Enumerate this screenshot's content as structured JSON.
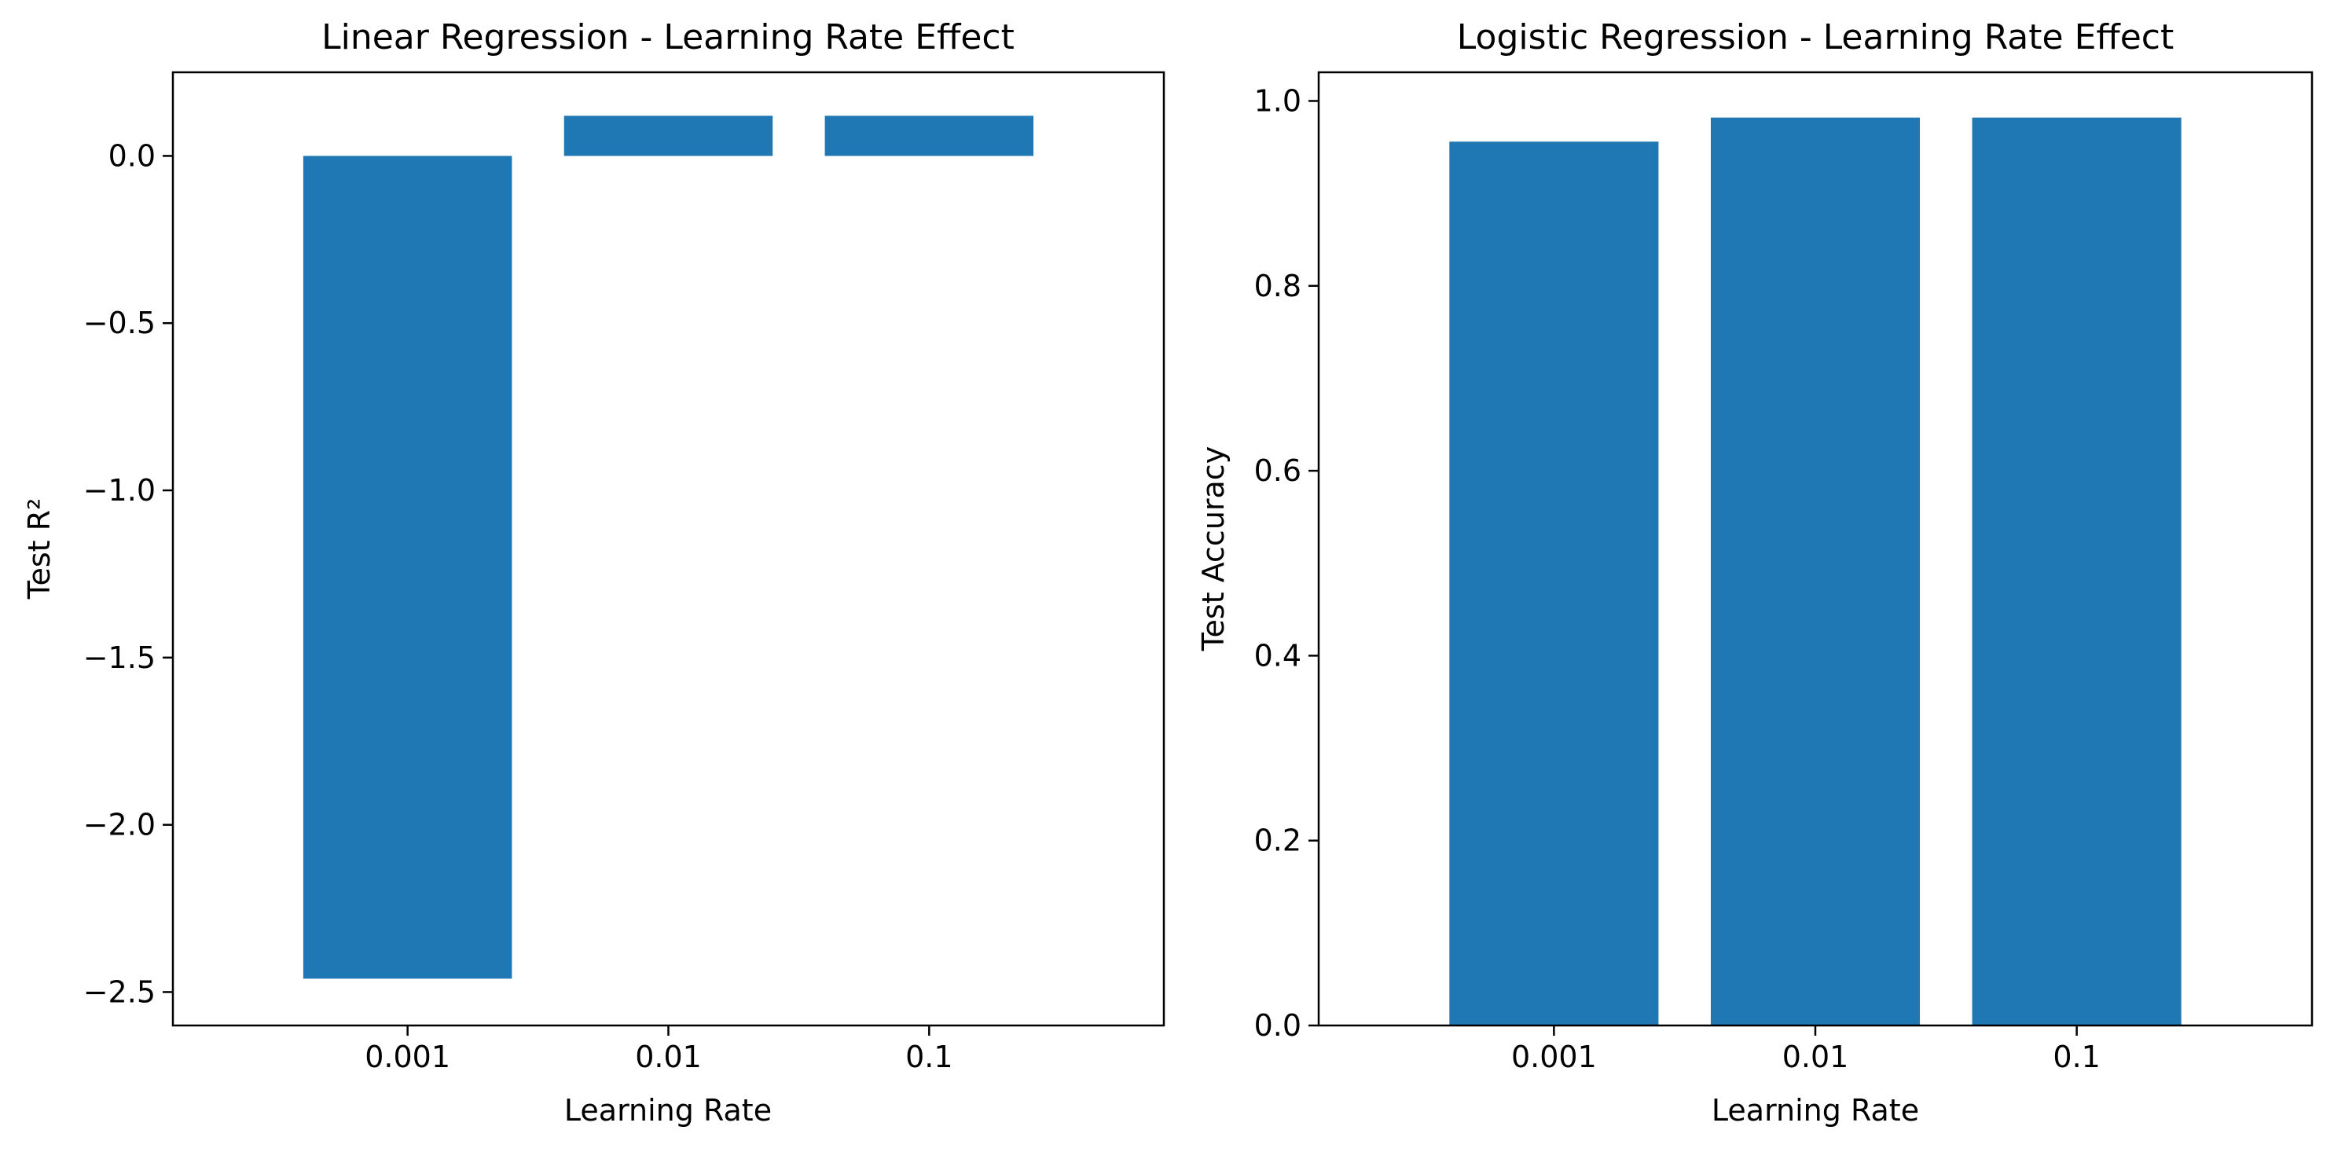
{
  "chart_data": [
    {
      "type": "bar",
      "title": "Linear Regression - Learning Rate Effect",
      "xlabel": "Learning Rate",
      "ylabel": "Test R²",
      "categories": [
        "0.001",
        "0.01",
        "0.1"
      ],
      "values": [
        -2.46,
        0.12,
        0.12
      ],
      "ylim": [
        -2.6,
        0.25
      ],
      "yticks": [
        0.0,
        -0.5,
        -1.0,
        -1.5,
        -2.0,
        -2.5
      ],
      "ytick_labels": [
        "0.0",
        "−0.5",
        "−1.0",
        "−1.5",
        "−2.0",
        "−2.5"
      ],
      "bar_color": "#1f77b4",
      "grid": false
    },
    {
      "type": "bar",
      "title": "Logistic Regression - Learning Rate Effect",
      "xlabel": "Learning Rate",
      "ylabel": "Test Accuracy",
      "categories": [
        "0.001",
        "0.01",
        "0.1"
      ],
      "values": [
        0.956,
        0.982,
        0.982
      ],
      "ylim": [
        0.0,
        1.031
      ],
      "yticks": [
        0.0,
        0.2,
        0.4,
        0.6,
        0.8,
        1.0
      ],
      "ytick_labels": [
        "0.0",
        "0.2",
        "0.4",
        "0.6",
        "0.8",
        "1.0"
      ],
      "bar_color": "#1f77b4",
      "grid": false
    }
  ]
}
